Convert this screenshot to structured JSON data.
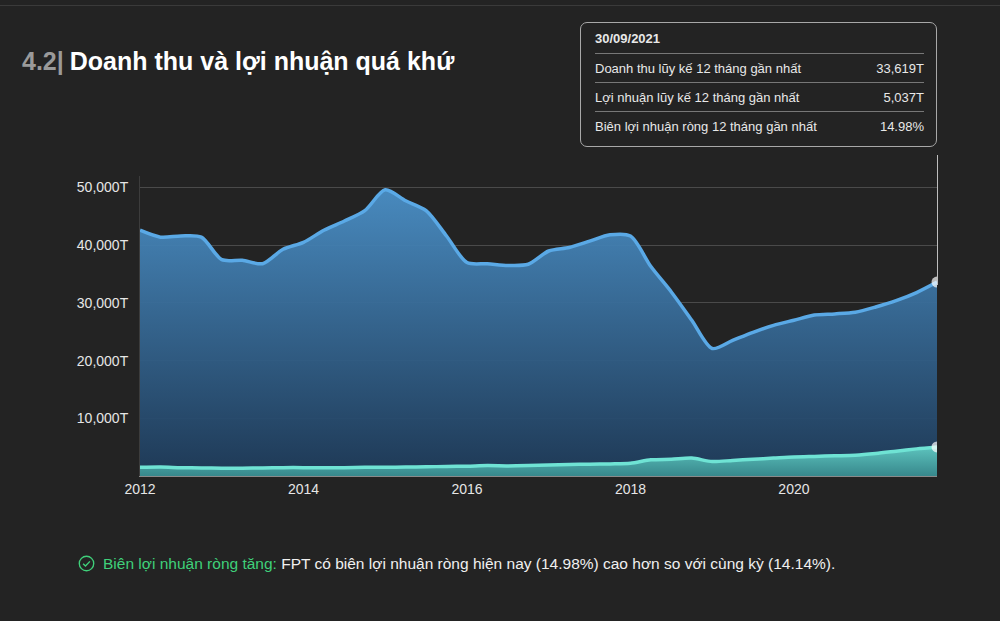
{
  "chart_data": {
    "type": "area",
    "section": "4.2|",
    "title": "Doanh thu và lợi nhuận quá khứ",
    "x": [
      2012,
      2012.25,
      2012.5,
      2012.75,
      2013,
      2013.25,
      2013.5,
      2013.75,
      2014,
      2014.25,
      2014.5,
      2014.75,
      2015,
      2015.25,
      2015.5,
      2015.75,
      2016,
      2016.25,
      2016.5,
      2016.75,
      2017,
      2017.25,
      2017.5,
      2017.75,
      2018,
      2018.25,
      2018.5,
      2018.75,
      2019,
      2019.25,
      2019.5,
      2019.75,
      2020,
      2020.25,
      2020.5,
      2020.75,
      2021,
      2021.25,
      2021.5,
      2021.75
    ],
    "series": [
      {
        "color": "#5aa9e6",
        "marker": "circle",
        "values": [
          42600,
          41400,
          41600,
          41400,
          37500,
          37400,
          36800,
          39300,
          40500,
          42600,
          44200,
          46000,
          49600,
          47700,
          46000,
          41600,
          37000,
          36800,
          36500,
          36700,
          39000,
          39600,
          40700,
          41800,
          41600,
          36300,
          31900,
          27000,
          22100,
          23500,
          24900,
          26100,
          27000,
          27900,
          28100,
          28400,
          29300,
          30400,
          31800,
          33619
        ]
      },
      {
        "color": "#6fe3d4",
        "marker": "circle",
        "values": [
          1500,
          1550,
          1450,
          1400,
          1350,
          1350,
          1400,
          1450,
          1450,
          1450,
          1450,
          1500,
          1500,
          1550,
          1600,
          1650,
          1700,
          1800,
          1750,
          1800,
          1900,
          2000,
          2050,
          2100,
          2200,
          2800,
          2900,
          3100,
          2500,
          2700,
          2900,
          3100,
          3300,
          3400,
          3500,
          3600,
          3900,
          4300,
          4700,
          5037
        ]
      }
    ],
    "xlim": [
      2012,
      2021.75
    ],
    "xticks": [
      2012,
      2014,
      2016,
      2018,
      2020
    ],
    "ylim": [
      0,
      52000
    ],
    "yticks": [
      {
        "value": 10000,
        "label": "10,000T"
      },
      {
        "value": 20000,
        "label": "20,000T"
      },
      {
        "value": 30000,
        "label": "30,000T"
      },
      {
        "value": 40000,
        "label": "40,000T"
      },
      {
        "value": 50000,
        "label": "50,000T"
      }
    ],
    "grid": true,
    "tooltip": {
      "date": "30/09/2021",
      "rows": [
        {
          "label": "Doanh thu lũy kế 12 tháng gần nhất",
          "value": "33,619T"
        },
        {
          "label": "Lợi nhuận lũy kế 12 tháng gần nhất",
          "value": "5,037T"
        },
        {
          "label": "Biên lợi nhuận ròng 12 tháng gần nhất",
          "value": "14.98%"
        }
      ]
    },
    "note": {
      "label": "Biên lợi nhuận ròng tăng:",
      "text": "FPT có biên lợi nhuận ròng hiện nay (14.98%) cao hơn so với cùng kỳ (14.14%)."
    }
  }
}
